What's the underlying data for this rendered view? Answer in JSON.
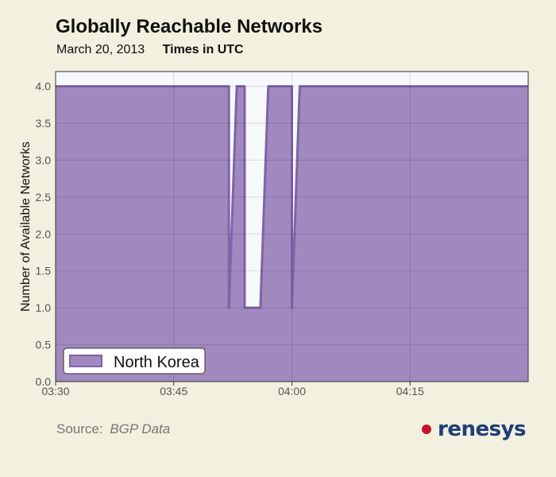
{
  "header": {
    "title": "Globally Reachable Networks",
    "date": "March 20, 2013",
    "timezone": "Times in UTC"
  },
  "footer": {
    "source_label": "Source:",
    "source_value": "BGP Data",
    "brand": "renesys"
  },
  "colors": {
    "background": "#f2f0de",
    "plot_background": "#f5f9fc",
    "area_fill": "#9f89bf",
    "area_line": "#8063a9",
    "brand_dot": "#c8102e",
    "brand_text": "#1f3d7a"
  },
  "chart_data": {
    "type": "area",
    "title": "Globally Reachable Networks",
    "ylabel": "Number of Available Networks",
    "xlabel": "",
    "xlim": [
      "03:30",
      "04:30"
    ],
    "ylim": [
      0,
      4.2
    ],
    "grid": true,
    "legend_position": "bottom-left",
    "x_ticks": [
      "03:30",
      "03:45",
      "04:00",
      "04:15"
    ],
    "y_ticks": [
      "0.0",
      "0.5",
      "1.0",
      "1.5",
      "2.0",
      "2.5",
      "3.0",
      "3.5",
      "4.0"
    ],
    "series": [
      {
        "name": "North Korea",
        "x": [
          "03:30",
          "03:52",
          "03:52",
          "03:53",
          "03:54",
          "03:54",
          "03:56",
          "03:57",
          "04:00",
          "04:00",
          "04:00",
          "04:01",
          "04:30"
        ],
        "y": [
          4,
          4,
          1,
          4,
          4,
          1,
          1,
          4,
          4,
          1,
          1,
          4,
          4
        ]
      }
    ]
  }
}
